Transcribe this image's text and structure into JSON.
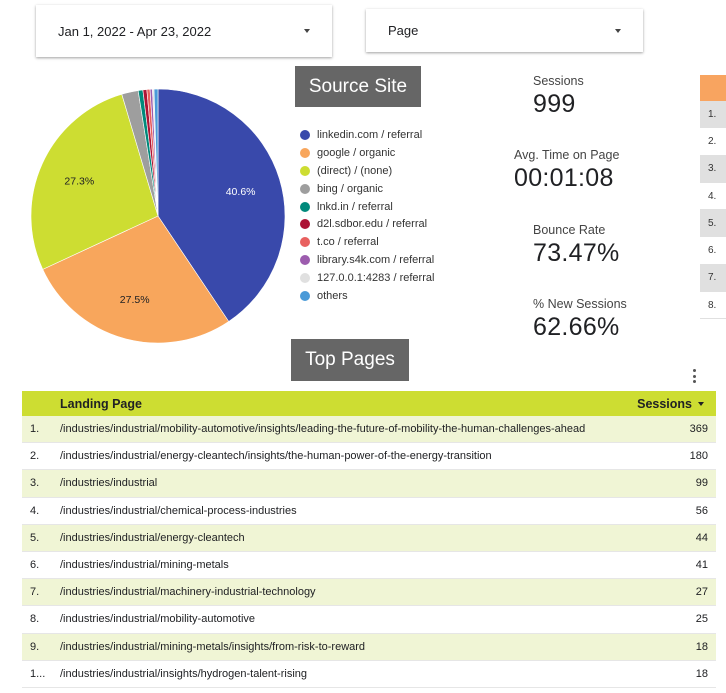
{
  "filters": {
    "date_range": "Jan 1, 2022 - Apr 23, 2022",
    "page": "Page"
  },
  "source_site": {
    "title": "Source Site",
    "chart_data": {
      "type": "pie",
      "slices": [
        {
          "label": "linkedin.com / referral",
          "value": 40.6,
          "color": "#3949ab",
          "shown_label": "40.6%"
        },
        {
          "label": "google / organic",
          "value": 27.5,
          "color": "#f8a65c",
          "shown_label": "27.5%"
        },
        {
          "label": "(direct) / (none)",
          "value": 27.3,
          "color": "#cddd32",
          "shown_label": "27.3%"
        },
        {
          "label": "bing / organic",
          "value": 2.1,
          "color": "#9e9e9e",
          "shown_label": ""
        },
        {
          "label": "lnkd.in / referral",
          "value": 0.6,
          "color": "#00897b",
          "shown_label": ""
        },
        {
          "label": "d2l.sdbor.edu / referral",
          "value": 0.5,
          "color": "#ad1436",
          "shown_label": ""
        },
        {
          "label": "t.co / referral",
          "value": 0.4,
          "color": "#e8605f",
          "shown_label": ""
        },
        {
          "label": "library.s4k.com / referral",
          "value": 0.3,
          "color": "#9c5cae",
          "shown_label": ""
        },
        {
          "label": "127.0.0.1:4283 / referral",
          "value": 0.2,
          "color": "#e0e0e0",
          "shown_label": ""
        },
        {
          "label": "others",
          "value": 0.5,
          "color": "#4a9ad8",
          "shown_label": ""
        }
      ]
    }
  },
  "kpis": {
    "sessions": {
      "label": "Sessions",
      "value": "999"
    },
    "avg_time": {
      "label": "Avg. Time on Page",
      "value": "00:01:08"
    },
    "bounce_rate": {
      "label": "Bounce Rate",
      "value": "73.47%"
    },
    "new_sessions": {
      "label": "% New Sessions",
      "value": "62.66%"
    }
  },
  "mini_table": {
    "header_color": "#f8a460",
    "rows": [
      "1.",
      "2.",
      "3.",
      "4.",
      "5.",
      "6.",
      "7.",
      "8."
    ]
  },
  "top_pages": {
    "title": "Top Pages",
    "columns": {
      "landing_page": "Landing Page",
      "sessions": "Sessions"
    },
    "rows": [
      {
        "idx": "1.",
        "page": "/industries/industrial/mobility-automotive/insights/leading-the-future-of-mobility-the-human-challenges-ahead",
        "sessions": "369"
      },
      {
        "idx": "2.",
        "page": "/industries/industrial/energy-cleantech/insights/the-human-power-of-the-energy-transition",
        "sessions": "180"
      },
      {
        "idx": "3.",
        "page": "/industries/industrial",
        "sessions": "99"
      },
      {
        "idx": "4.",
        "page": "/industries/industrial/chemical-process-industries",
        "sessions": "56"
      },
      {
        "idx": "5.",
        "page": "/industries/industrial/energy-cleantech",
        "sessions": "44"
      },
      {
        "idx": "6.",
        "page": "/industries/industrial/mining-metals",
        "sessions": "41"
      },
      {
        "idx": "7.",
        "page": "/industries/industrial/machinery-industrial-technology",
        "sessions": "27"
      },
      {
        "idx": "8.",
        "page": "/industries/industrial/mobility-automotive",
        "sessions": "25"
      },
      {
        "idx": "9.",
        "page": "/industries/industrial/mining-metals/insights/from-risk-to-reward",
        "sessions": "18"
      },
      {
        "idx": "1...",
        "page": "/industries/industrial/insights/hydrogen-talent-rising",
        "sessions": "18"
      }
    ]
  }
}
